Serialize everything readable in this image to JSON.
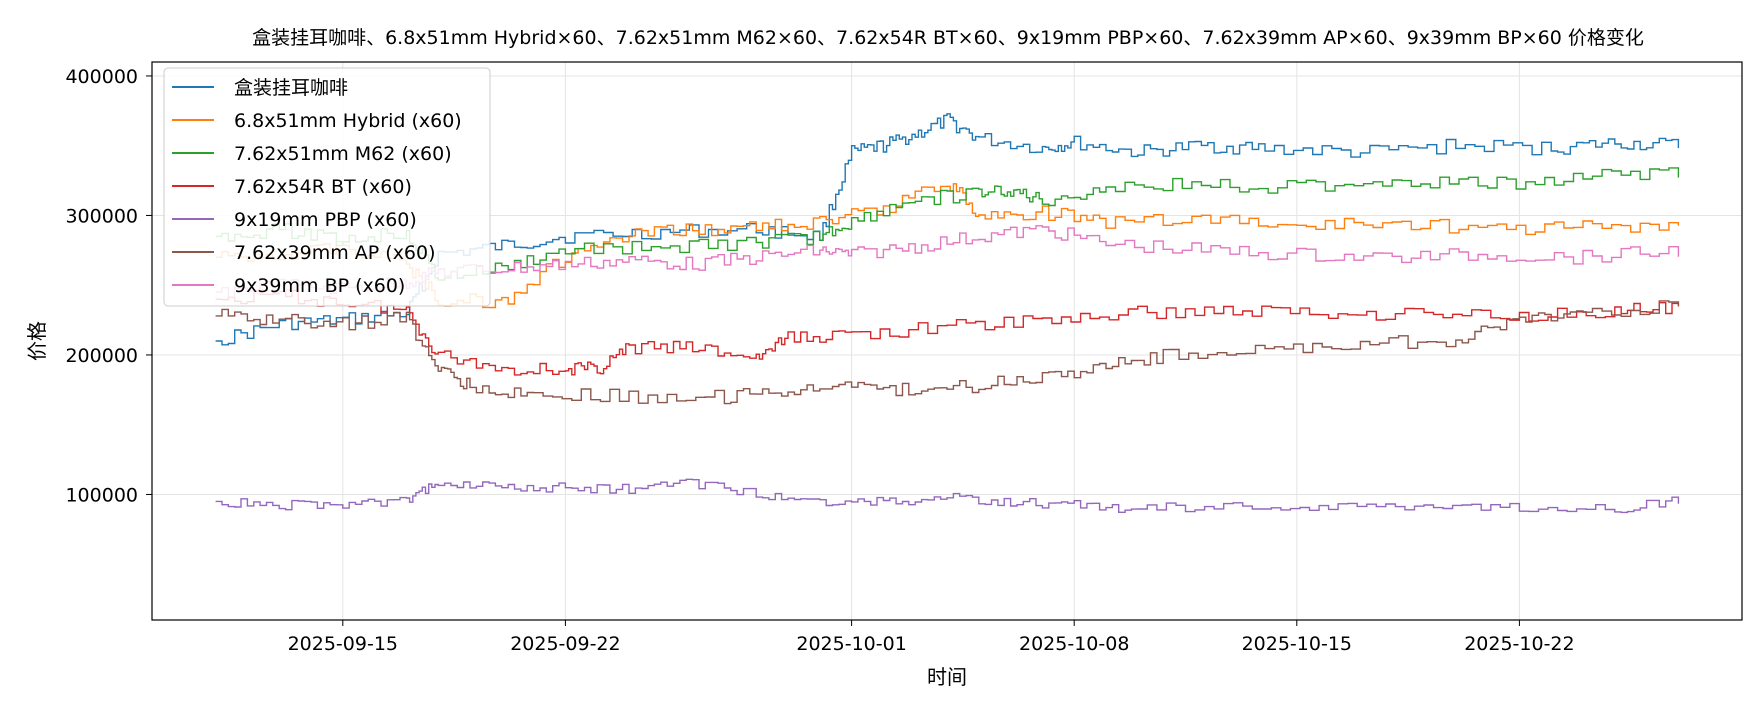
{
  "chart_data": {
    "type": "line",
    "title": "盒装挂耳咖啡、6.8x51mm Hybrid×60、7.62x51mm M62×60、7.62x54R BT×60、9x19mm PBP×60、7.62x39mm AP×60、9x39mm BP×60 价格变化",
    "xlabel": "时间",
    "ylabel": "价格",
    "x_range": [
      "2025-09-09",
      "2025-10-29"
    ],
    "ylim": [
      10000,
      410000
    ],
    "x_ticks": [
      "2025-09-15",
      "2025-09-22",
      "2025-10-01",
      "2025-10-08",
      "2025-10-15",
      "2025-10-22"
    ],
    "y_ticks": [
      100000,
      200000,
      300000,
      400000
    ],
    "grid": true,
    "legend_position": "top-left",
    "series": [
      {
        "name": "盒装挂耳咖啡",
        "color": "#1f77b4",
        "points": [
          [
            "2025-09-11",
            210000
          ],
          [
            "2025-09-13",
            222000
          ],
          [
            "2025-09-15",
            225000
          ],
          [
            "2025-09-17",
            230000
          ],
          [
            "2025-09-18",
            272000
          ],
          [
            "2025-09-20",
            278000
          ],
          [
            "2025-09-22",
            285000
          ],
          [
            "2025-09-25",
            288000
          ],
          [
            "2025-09-28",
            290000
          ],
          [
            "2025-09-30",
            285000
          ],
          [
            "2025-10-01",
            345000
          ],
          [
            "2025-10-02",
            350000
          ],
          [
            "2025-10-03",
            358000
          ],
          [
            "2025-10-04",
            368000
          ],
          [
            "2025-10-05",
            355000
          ],
          [
            "2025-10-07",
            348000
          ],
          [
            "2025-10-08",
            352000
          ],
          [
            "2025-10-10",
            345000
          ],
          [
            "2025-10-12",
            350000
          ],
          [
            "2025-10-14",
            348000
          ],
          [
            "2025-10-17",
            345000
          ],
          [
            "2025-10-20",
            350000
          ],
          [
            "2025-10-23",
            348000
          ],
          [
            "2025-10-25",
            352000
          ],
          [
            "2025-10-27",
            350000
          ]
        ]
      },
      {
        "name": "6.8x51mm Hybrid (x60)",
        "color": "#ff7f0e",
        "points": [
          [
            "2025-09-11",
            270000
          ],
          [
            "2025-09-13",
            272000
          ],
          [
            "2025-09-15",
            278000
          ],
          [
            "2025-09-17",
            265000
          ],
          [
            "2025-09-18",
            240000
          ],
          [
            "2025-09-20",
            238000
          ],
          [
            "2025-09-22",
            270000
          ],
          [
            "2025-09-24",
            285000
          ],
          [
            "2025-09-26",
            290000
          ],
          [
            "2025-09-28",
            292000
          ],
          [
            "2025-09-30",
            295000
          ],
          [
            "2025-10-02",
            305000
          ],
          [
            "2025-10-04",
            325000
          ],
          [
            "2025-10-05",
            300000
          ],
          [
            "2025-10-07",
            302000
          ],
          [
            "2025-10-09",
            295000
          ],
          [
            "2025-10-12",
            298000
          ],
          [
            "2025-10-15",
            292000
          ],
          [
            "2025-10-18",
            295000
          ],
          [
            "2025-10-21",
            290000
          ],
          [
            "2025-10-24",
            292000
          ],
          [
            "2025-10-27",
            290000
          ]
        ]
      },
      {
        "name": "7.62x51mm M62 (x60)",
        "color": "#2ca02c",
        "points": [
          [
            "2025-09-11",
            285000
          ],
          [
            "2025-09-13",
            290000
          ],
          [
            "2025-09-15",
            282000
          ],
          [
            "2025-09-17",
            288000
          ],
          [
            "2025-09-18",
            255000
          ],
          [
            "2025-09-20",
            262000
          ],
          [
            "2025-09-22",
            275000
          ],
          [
            "2025-09-25",
            278000
          ],
          [
            "2025-09-28",
            280000
          ],
          [
            "2025-09-30",
            285000
          ],
          [
            "2025-10-01",
            295000
          ],
          [
            "2025-10-03",
            312000
          ],
          [
            "2025-10-05",
            315000
          ],
          [
            "2025-10-06",
            318000
          ],
          [
            "2025-10-07",
            310000
          ],
          [
            "2025-10-09",
            320000
          ],
          [
            "2025-10-12",
            322000
          ],
          [
            "2025-10-15",
            320000
          ],
          [
            "2025-10-18",
            325000
          ],
          [
            "2025-10-21",
            322000
          ],
          [
            "2025-10-24",
            328000
          ],
          [
            "2025-10-27",
            330000
          ]
        ]
      },
      {
        "name": "7.62x54R BT (x60)",
        "color": "#d62728",
        "points": [
          [
            "2025-09-11",
            240000
          ],
          [
            "2025-09-13",
            242000
          ],
          [
            "2025-09-15",
            238000
          ],
          [
            "2025-09-17",
            232000
          ],
          [
            "2025-09-18",
            200000
          ],
          [
            "2025-09-20",
            190000
          ],
          [
            "2025-09-22",
            190000
          ],
          [
            "2025-09-23",
            190000
          ],
          [
            "2025-09-24",
            205000
          ],
          [
            "2025-09-26",
            205000
          ],
          [
            "2025-09-28",
            198000
          ],
          [
            "2025-09-29",
            212000
          ],
          [
            "2025-10-01",
            215000
          ],
          [
            "2025-10-04",
            220000
          ],
          [
            "2025-10-07",
            225000
          ],
          [
            "2025-10-10",
            230000
          ],
          [
            "2025-10-13",
            232000
          ],
          [
            "2025-10-16",
            230000
          ],
          [
            "2025-10-19",
            230000
          ],
          [
            "2025-10-22",
            228000
          ],
          [
            "2025-10-25",
            232000
          ],
          [
            "2025-10-27",
            233000
          ]
        ]
      },
      {
        "name": "9x19mm PBP (x60)",
        "color": "#9467bd",
        "points": [
          [
            "2025-09-11",
            95000
          ],
          [
            "2025-09-13",
            92000
          ],
          [
            "2025-09-15",
            93000
          ],
          [
            "2025-09-17",
            95000
          ],
          [
            "2025-09-18",
            110000
          ],
          [
            "2025-09-20",
            105000
          ],
          [
            "2025-09-22",
            105000
          ],
          [
            "2025-09-24",
            104000
          ],
          [
            "2025-09-26",
            108000
          ],
          [
            "2025-09-28",
            100000
          ],
          [
            "2025-09-30",
            95000
          ],
          [
            "2025-10-02",
            95000
          ],
          [
            "2025-10-04",
            98000
          ],
          [
            "2025-10-06",
            94000
          ],
          [
            "2025-10-08",
            92000
          ],
          [
            "2025-10-10",
            90000
          ],
          [
            "2025-10-13",
            91000
          ],
          [
            "2025-10-16",
            90000
          ],
          [
            "2025-10-19",
            92000
          ],
          [
            "2025-10-22",
            90000
          ],
          [
            "2025-10-25",
            90000
          ],
          [
            "2025-10-27",
            96000
          ]
        ]
      },
      {
        "name": "7.62x39mm AP (x60)",
        "color": "#8c564b",
        "points": [
          [
            "2025-09-11",
            228000
          ],
          [
            "2025-09-13",
            225000
          ],
          [
            "2025-09-15",
            222000
          ],
          [
            "2025-09-17",
            226000
          ],
          [
            "2025-09-18",
            190000
          ],
          [
            "2025-09-19",
            178000
          ],
          [
            "2025-09-21",
            172000
          ],
          [
            "2025-09-24",
            170000
          ],
          [
            "2025-09-27",
            170000
          ],
          [
            "2025-09-29",
            176000
          ],
          [
            "2025-10-01",
            176000
          ],
          [
            "2025-10-03",
            175000
          ],
          [
            "2025-10-05",
            178000
          ],
          [
            "2025-10-07",
            185000
          ],
          [
            "2025-10-09",
            192000
          ],
          [
            "2025-10-11",
            200000
          ],
          [
            "2025-10-14",
            203000
          ],
          [
            "2025-10-17",
            208000
          ],
          [
            "2025-10-20",
            210000
          ],
          [
            "2025-10-22",
            225000
          ],
          [
            "2025-10-24",
            230000
          ],
          [
            "2025-10-27",
            235000
          ]
        ]
      },
      {
        "name": "9x39mm BP (x60)",
        "color": "#e377c2",
        "points": [
          [
            "2025-09-11",
            245000
          ],
          [
            "2025-09-13",
            250000
          ],
          [
            "2025-09-15",
            248000
          ],
          [
            "2025-09-17",
            252000
          ],
          [
            "2025-09-18",
            260000
          ],
          [
            "2025-09-20",
            262000
          ],
          [
            "2025-09-22",
            265000
          ],
          [
            "2025-09-24",
            268000
          ],
          [
            "2025-09-26",
            265000
          ],
          [
            "2025-09-28",
            270000
          ],
          [
            "2025-09-30",
            275000
          ],
          [
            "2025-10-01",
            272000
          ],
          [
            "2025-10-03",
            278000
          ],
          [
            "2025-10-05",
            285000
          ],
          [
            "2025-10-07",
            290000
          ],
          [
            "2025-10-09",
            280000
          ],
          [
            "2025-10-12",
            275000
          ],
          [
            "2025-10-15",
            272000
          ],
          [
            "2025-10-18",
            270000
          ],
          [
            "2025-10-21",
            272000
          ],
          [
            "2025-10-24",
            270000
          ],
          [
            "2025-10-27",
            275000
          ]
        ]
      }
    ]
  }
}
